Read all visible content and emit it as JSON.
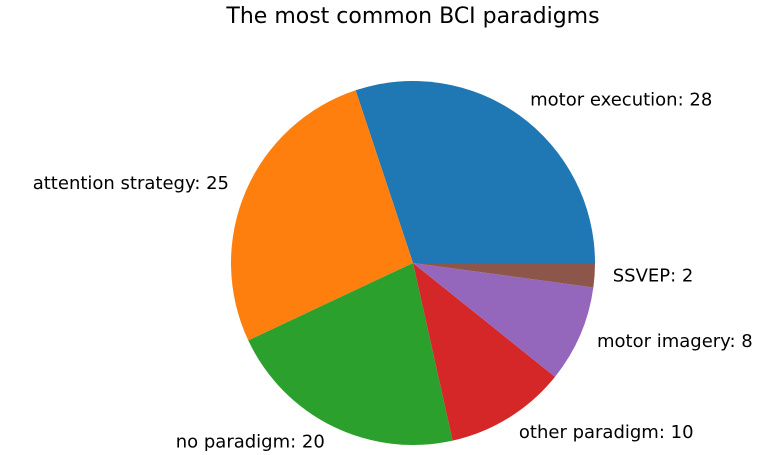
{
  "chart_data": {
    "type": "pie",
    "title": "The most common BCI paradigms",
    "labels": [
      "motor execution: 28",
      "attention strategy: 25",
      "no paradigm: 20",
      "other paradigm: 10",
      "motor imagery: 8",
      "SSVEP: 2"
    ],
    "values": [
      28,
      25,
      20,
      10,
      8,
      2
    ],
    "colors": [
      "#1f77b4",
      "#ff7f0e",
      "#2ca02c",
      "#d62728",
      "#9467bd",
      "#8c564b"
    ],
    "start_angle": 0,
    "counterclockwise": true
  }
}
